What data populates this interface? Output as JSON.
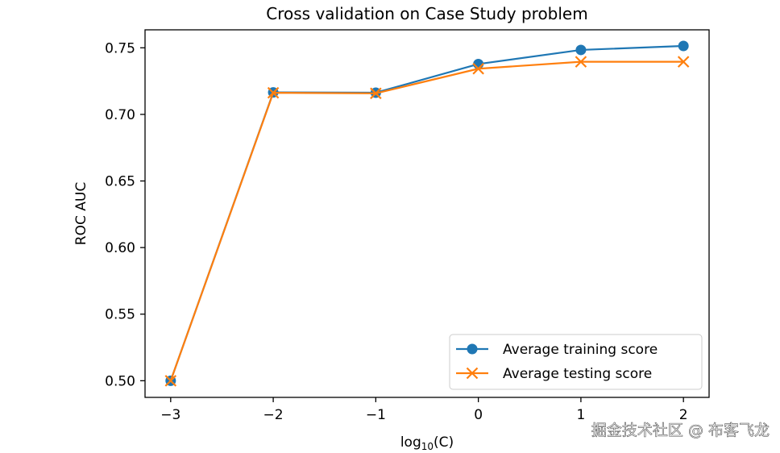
{
  "chart_data": {
    "type": "line",
    "title": "Cross validation on Case Study problem",
    "xlabel": "log10(C)",
    "ylabel": "ROC AUC",
    "x": [
      -3,
      -2,
      -1,
      0,
      1,
      2
    ],
    "xlim": [
      -3.25,
      2.25
    ],
    "ylim": [
      0.4875,
      0.7635
    ],
    "xticks": [
      -3,
      -2,
      -1,
      0,
      1,
      2
    ],
    "xtick_labels": [
      "−3",
      "−2",
      "−1",
      "0",
      "1",
      "2"
    ],
    "yticks": [
      0.5,
      0.55,
      0.6,
      0.65,
      0.7,
      0.75
    ],
    "ytick_labels": [
      "0.50",
      "0.55",
      "0.60",
      "0.65",
      "0.70",
      "0.75"
    ],
    "grid": false,
    "legend_position": "lower-right",
    "series": [
      {
        "name": "Average training score",
        "marker": "circle",
        "color": "#1f77b4",
        "values": [
          0.5,
          0.7165,
          0.7163,
          0.7378,
          0.7484,
          0.7514
        ]
      },
      {
        "name": "Average testing score",
        "marker": "x",
        "color": "#ff7f0e",
        "values": [
          0.5,
          0.7162,
          0.7158,
          0.7343,
          0.7395,
          0.7395
        ]
      }
    ]
  },
  "watermark": "掘金技术社区 @ 布客飞龙"
}
